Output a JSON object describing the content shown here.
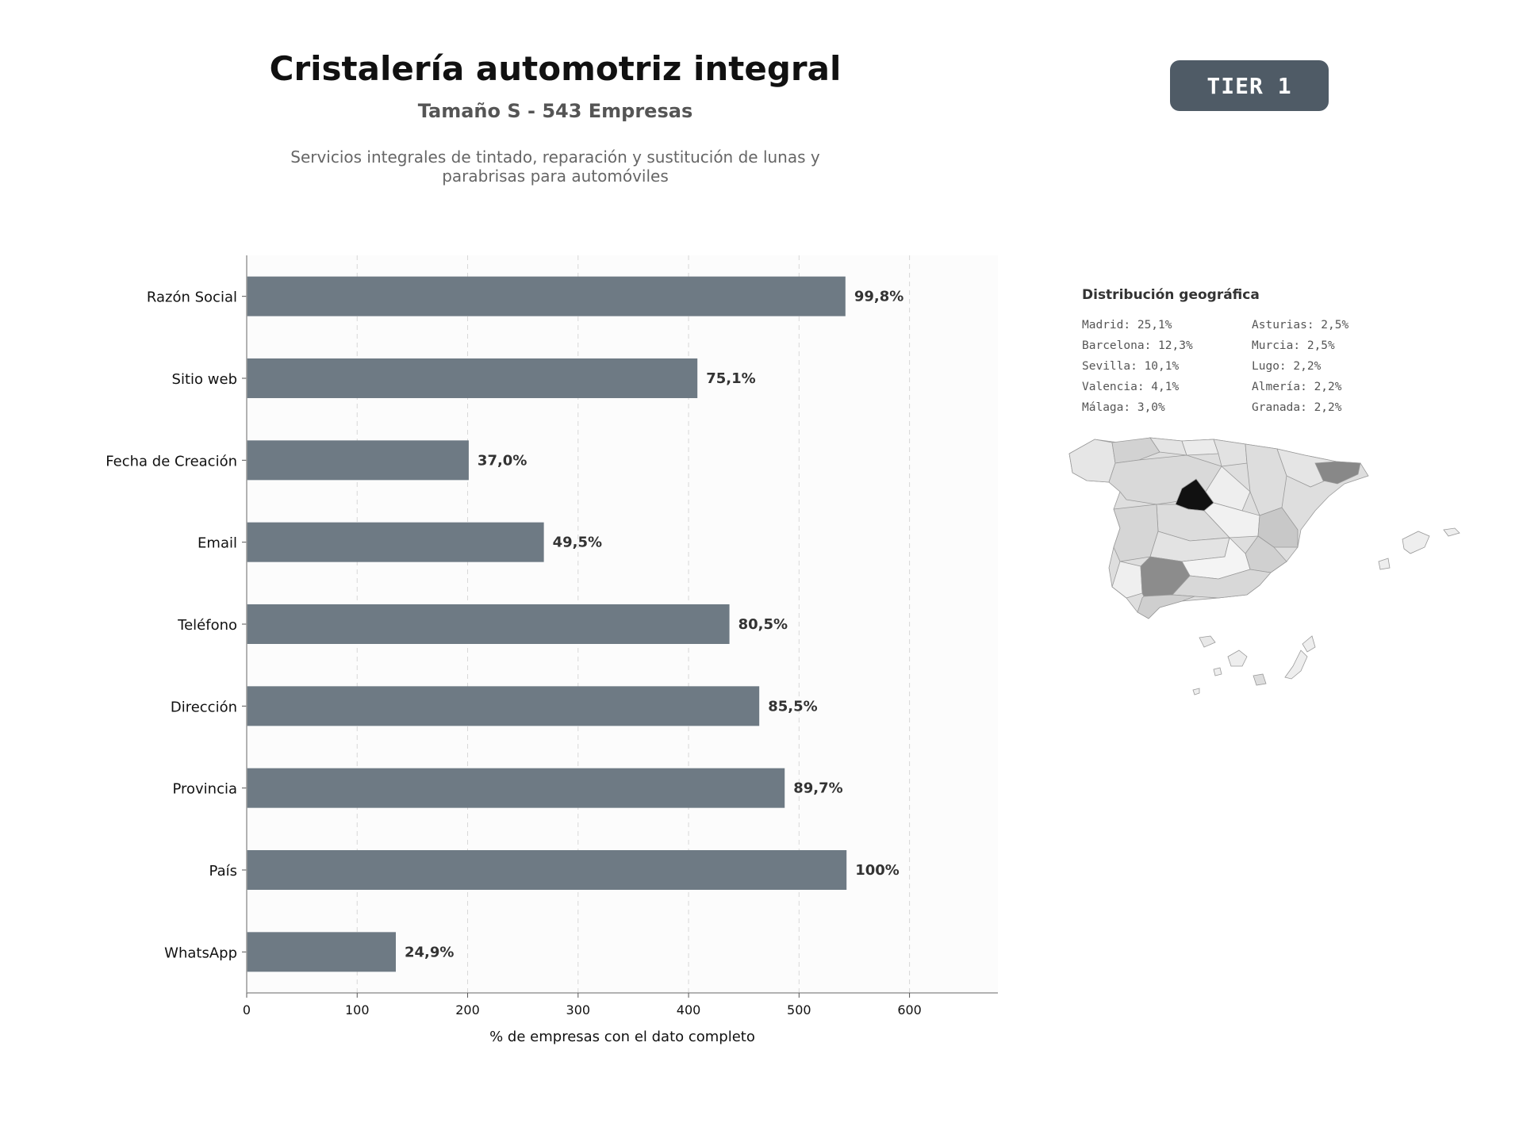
{
  "header": {
    "title": "Cristalería automotriz integral",
    "subtitle": "Tamaño S - 543 Empresas",
    "description": "Servicios integrales de tintado, reparación y sustitución de lunas y parabrisas para automóviles",
    "tier_label": "TIER 1"
  },
  "colors": {
    "bar": "#6e7a84",
    "tier_badge": "#4f5b66",
    "map_highlight": "#111111"
  },
  "chart_data": {
    "type": "bar",
    "orientation": "horizontal",
    "categories": [
      "Razón Social",
      "Sitio web",
      "Fecha de Creación",
      "Email",
      "Teléfono",
      "Dirección",
      "Provincia",
      "País",
      "WhatsApp"
    ],
    "values": [
      542,
      408,
      201,
      269,
      437,
      464,
      487,
      543,
      135
    ],
    "data_labels": [
      "99,8%",
      "75,1%",
      "37,0%",
      "49,5%",
      "80,5%",
      "85,5%",
      "89,7%",
      "100%",
      "24,9%"
    ],
    "xlabel": "% de empresas con el dato completo",
    "xlim": [
      0,
      680
    ],
    "xticks": [
      0,
      100,
      200,
      300,
      400,
      500,
      600
    ],
    "grid": "vertical-dashed"
  },
  "geo": {
    "title": "Distribución geográfica",
    "entries": [
      "Madrid: 25,1%",
      "Asturias: 2,5%",
      "Barcelona: 12,3%",
      "Murcia: 2,5%",
      "Sevilla: 10,1%",
      "Lugo: 2,2%",
      "Valencia: 4,1%",
      "Almería: 2,2%",
      "Málaga: 3,0%",
      "Granada: 2,2%"
    ]
  }
}
